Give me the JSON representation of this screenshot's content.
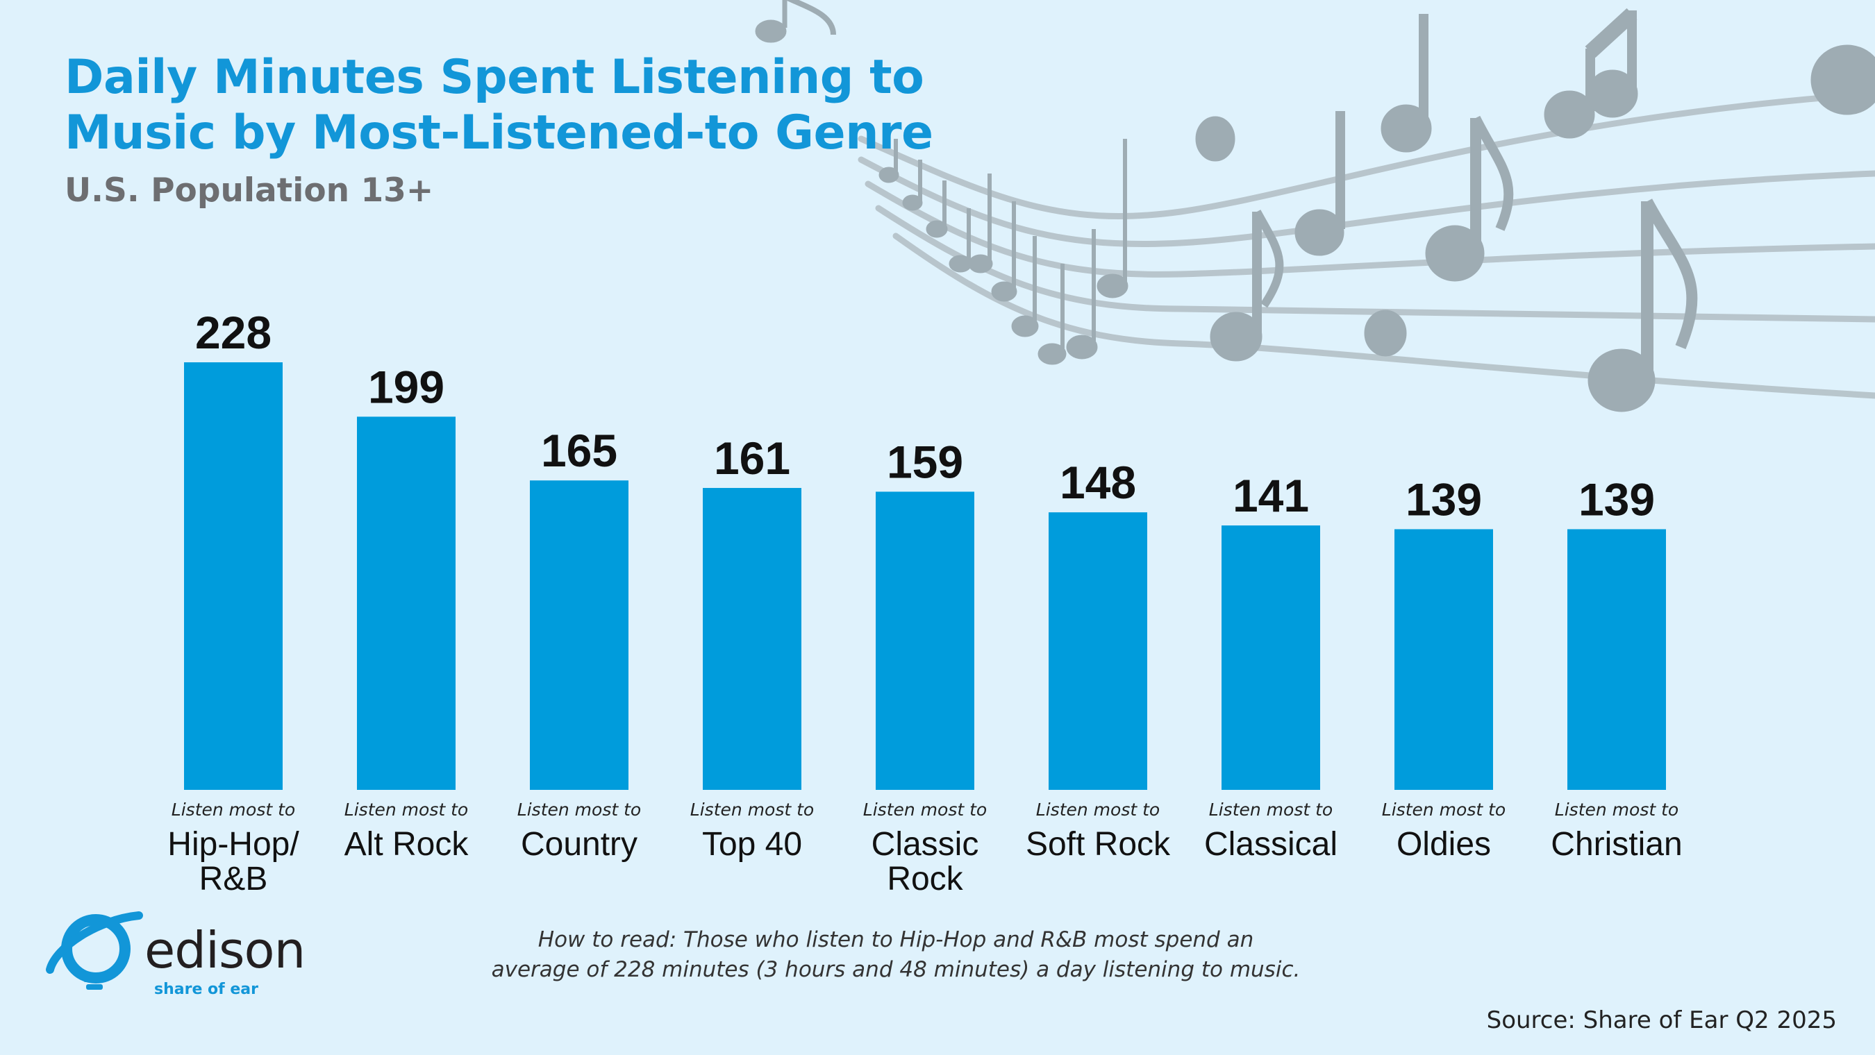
{
  "header": {
    "title_line1": "Daily Minutes Spent Listening to",
    "title_line2": "Music by Most-Listened-to Genre",
    "subtitle": "U.S. Population 13+"
  },
  "chart_data": {
    "type": "bar",
    "title": "Daily Minutes Spent Listening to Music by Most-Listened-to Genre",
    "subtitle": "U.S. Population 13+",
    "category_prefix": "Listen most to",
    "categories": [
      "Hip-Hop/ R&B",
      "Alt Rock",
      "Country",
      "Top 40",
      "Classic Rock",
      "Soft Rock",
      "Classical",
      "Oldies",
      "Christian"
    ],
    "category_lines": [
      [
        "Hip-Hop/",
        "R&B"
      ],
      [
        "Alt Rock"
      ],
      [
        "Country"
      ],
      [
        "Top 40"
      ],
      [
        "Classic",
        "Rock"
      ],
      [
        "Soft Rock"
      ],
      [
        "Classical"
      ],
      [
        "Oldies"
      ],
      [
        "Christian"
      ]
    ],
    "values": [
      228,
      199,
      165,
      161,
      159,
      148,
      141,
      139,
      139
    ],
    "ylim": [
      0,
      228
    ],
    "grid": false,
    "legend": "none",
    "bar_color": "#009cdc"
  },
  "footer": {
    "how_to_read_line1": "How to read: Those who listen to Hip-Hop and R&B most spend an",
    "how_to_read_line2": "average of 228 minutes (3 hours and 48 minutes) a day listening to music.",
    "source": "Source: Share of Ear Q2 2025"
  },
  "logo": {
    "icon": "edison-bulb-icon",
    "wordmark": "edison",
    "tagline": "share of ear"
  },
  "decoration": {
    "icon": "music-notes-staff-icon",
    "color": "#9eacb3"
  },
  "colors": {
    "title": "#1296d8",
    "subtitle": "#6d6e71",
    "bars": "#009cdc",
    "background": "#dff2fc"
  }
}
